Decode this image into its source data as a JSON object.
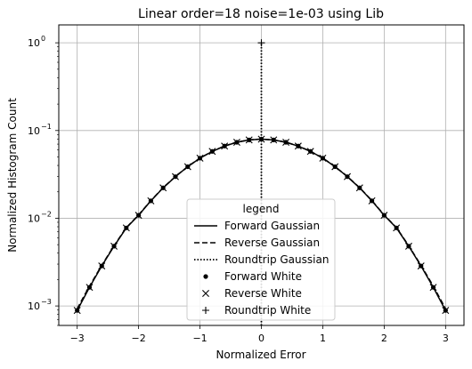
{
  "chart_data": {
    "type": "line",
    "title": "Linear order=18 noise=1e-03 using Lib",
    "xlabel": "Normalized Error",
    "ylabel": "Normalized Histogram Count",
    "yscale": "log",
    "xlim": [
      -3.3,
      3.3
    ],
    "ylim": [
      0.0006,
      1.6
    ],
    "grid": true,
    "x_ticks": [
      -3,
      -2,
      -1,
      0,
      1,
      2,
      3
    ],
    "x_tick_labels": [
      "−3",
      "−2",
      "−1",
      "0",
      "1",
      "2",
      "3"
    ],
    "y_ticks": [
      0.001,
      0.01,
      0.1,
      1
    ],
    "y_tick_labels": [
      "10",
      "10",
      "10",
      "10"
    ],
    "y_tick_exponents": [
      "−3",
      "−2",
      "−1",
      "0"
    ],
    "legend": {
      "title": "legend",
      "placement": "lower-center",
      "entries": [
        {
          "label": "Forward Gaussian",
          "style": "solid"
        },
        {
          "label": "Reverse Gaussian",
          "style": "dashed"
        },
        {
          "label": "Roundtrip Gaussian",
          "style": "dotted"
        },
        {
          "label": "Forward White",
          "style": "dot-marker"
        },
        {
          "label": "Reverse White",
          "style": "x-marker"
        },
        {
          "label": "Roundtrip White",
          "style": "plus-marker"
        }
      ]
    },
    "series": [
      {
        "name": "Forward Gaussian",
        "style": "solid",
        "x": [
          -3.0,
          -2.8,
          -2.6,
          -2.4,
          -2.2,
          -2.0,
          -1.8,
          -1.6,
          -1.4,
          -1.2,
          -1.0,
          -0.8,
          -0.6,
          -0.4,
          -0.2,
          0.0,
          0.2,
          0.4,
          0.6,
          0.8,
          1.0,
          1.2,
          1.4,
          1.6,
          1.8,
          2.0,
          2.2,
          2.4,
          2.6,
          2.8,
          3.0
        ],
        "y": [
          0.00089,
          0.00163,
          0.00286,
          0.0048,
          0.00776,
          0.0108,
          0.0158,
          0.0222,
          0.0298,
          0.0387,
          0.0484,
          0.0578,
          0.0665,
          0.0735,
          0.0781,
          0.0797,
          0.0781,
          0.0735,
          0.0665,
          0.0578,
          0.0484,
          0.0387,
          0.0298,
          0.0222,
          0.0158,
          0.0108,
          0.00776,
          0.0048,
          0.00286,
          0.00163,
          0.00089
        ]
      },
      {
        "name": "Reverse Gaussian",
        "style": "dashed",
        "x": [
          -3.0,
          -2.8,
          -2.6,
          -2.4,
          -2.2,
          -2.0,
          -1.8,
          -1.6,
          -1.4,
          -1.2,
          -1.0,
          -0.8,
          -0.6,
          -0.4,
          -0.2,
          0.0,
          0.2,
          0.4,
          0.6,
          0.8,
          1.0,
          1.2,
          1.4,
          1.6,
          1.8,
          2.0,
          2.2,
          2.4,
          2.6,
          2.8,
          3.0
        ],
        "y": [
          0.00093,
          0.00168,
          0.0029,
          0.00486,
          0.00782,
          0.0109,
          0.0159,
          0.0223,
          0.0299,
          0.0388,
          0.0485,
          0.0579,
          0.0666,
          0.0736,
          0.0782,
          0.0798,
          0.0782,
          0.0736,
          0.0666,
          0.0579,
          0.0485,
          0.0388,
          0.0299,
          0.0223,
          0.0159,
          0.0109,
          0.00782,
          0.00486,
          0.0029,
          0.00168,
          0.00093
        ]
      },
      {
        "name": "Roundtrip Gaussian",
        "style": "dotted",
        "x": [
          0.0,
          0.0
        ],
        "y": [
          0.0006,
          1.0
        ]
      },
      {
        "name": "Forward White",
        "style": "dot-marker",
        "x": [
          -3.0,
          -2.8,
          -2.6,
          -2.4,
          -2.2,
          -2.0,
          -1.8,
          -1.6,
          -1.4,
          -1.2,
          -1.0,
          -0.8,
          -0.6,
          -0.4,
          -0.2,
          0.0,
          0.2,
          0.4,
          0.6,
          0.8,
          1.0,
          1.2,
          1.4,
          1.6,
          1.8,
          2.0,
          2.2,
          2.4,
          2.6,
          2.8,
          3.0
        ],
        "y": [
          0.00089,
          0.00163,
          0.00286,
          0.0048,
          0.00776,
          0.0108,
          0.0158,
          0.0222,
          0.0298,
          0.0387,
          0.0484,
          0.0578,
          0.0665,
          0.0735,
          0.0781,
          0.0797,
          0.0781,
          0.0735,
          0.0665,
          0.0578,
          0.0484,
          0.0387,
          0.0298,
          0.0222,
          0.0158,
          0.0108,
          0.00776,
          0.0048,
          0.00286,
          0.00163,
          0.00089
        ]
      },
      {
        "name": "Reverse White",
        "style": "x-marker",
        "x": [
          -3.0,
          -2.8,
          -2.6,
          -2.4,
          -2.2,
          -2.0,
          -1.8,
          -1.6,
          -1.4,
          -1.2,
          -1.0,
          -0.8,
          -0.6,
          -0.4,
          -0.2,
          0.0,
          0.2,
          0.4,
          0.6,
          0.8,
          1.0,
          1.2,
          1.4,
          1.6,
          1.8,
          2.0,
          2.2,
          2.4,
          2.6,
          2.8,
          3.0
        ],
        "y": [
          0.00089,
          0.00163,
          0.00286,
          0.0048,
          0.00776,
          0.0108,
          0.0158,
          0.0222,
          0.0298,
          0.0387,
          0.0484,
          0.0578,
          0.0665,
          0.0735,
          0.0781,
          0.0797,
          0.0781,
          0.0735,
          0.0665,
          0.0578,
          0.0484,
          0.0387,
          0.0298,
          0.0222,
          0.0158,
          0.0108,
          0.00776,
          0.0048,
          0.00286,
          0.00163,
          0.00089
        ]
      },
      {
        "name": "Roundtrip White",
        "style": "plus-marker",
        "x": [
          0.0
        ],
        "y": [
          1.0
        ]
      }
    ]
  }
}
